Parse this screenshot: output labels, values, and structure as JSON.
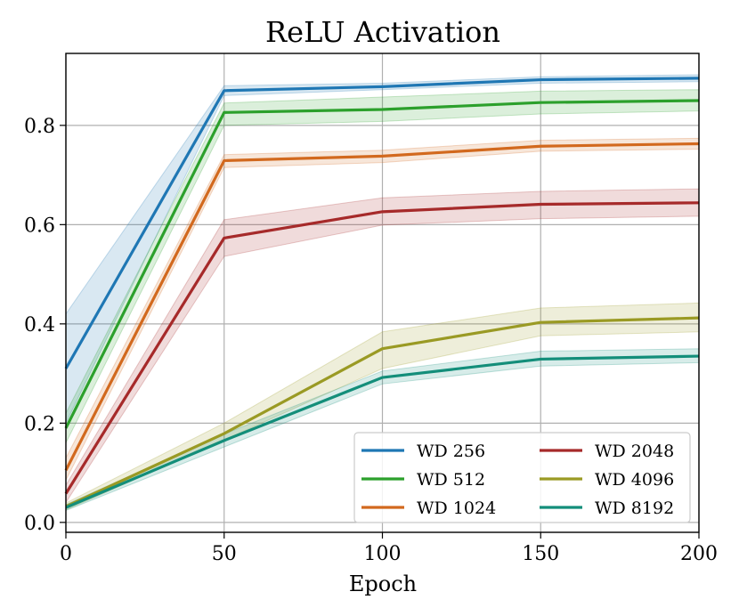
{
  "chart_data": {
    "type": "line",
    "title": "ReLU Activation",
    "xlabel": "Epoch",
    "ylabel": "",
    "xlim": [
      0,
      200
    ],
    "ylim": [
      -0.02,
      0.945
    ],
    "x_ticks": [
      0,
      50,
      100,
      150,
      200
    ],
    "y_ticks": [
      0.0,
      0.2,
      0.4,
      0.6,
      0.8
    ],
    "x_tick_labels": [
      "0",
      "50",
      "100",
      "150",
      "200"
    ],
    "y_tick_labels": [
      "0.0",
      "0.2",
      "0.4",
      "0.6",
      "0.8"
    ],
    "grid": true,
    "legend_position": "lower-right",
    "legend_columns": 2,
    "x": [
      0,
      50,
      100,
      150,
      200
    ],
    "series": [
      {
        "name": "WD 256",
        "color": "#1f77b4",
        "values": [
          0.31,
          0.87,
          0.878,
          0.892,
          0.895
        ],
        "lower": [
          0.2,
          0.86,
          0.872,
          0.885,
          0.888
        ],
        "upper": [
          0.42,
          0.88,
          0.885,
          0.898,
          0.902
        ]
      },
      {
        "name": "WD 512",
        "color": "#2ca02c",
        "values": [
          0.19,
          0.826,
          0.832,
          0.846,
          0.85
        ],
        "lower": [
          0.16,
          0.8,
          0.808,
          0.823,
          0.829
        ],
        "upper": [
          0.22,
          0.845,
          0.857,
          0.869,
          0.872
        ]
      },
      {
        "name": "WD 1024",
        "color": "#d2691e",
        "values": [
          0.105,
          0.729,
          0.738,
          0.758,
          0.763
        ],
        "lower": [
          0.085,
          0.715,
          0.725,
          0.748,
          0.752
        ],
        "upper": [
          0.13,
          0.741,
          0.75,
          0.77,
          0.774
        ]
      },
      {
        "name": "WD 2048",
        "color": "#a62a2a",
        "values": [
          0.058,
          0.573,
          0.626,
          0.641,
          0.644
        ],
        "lower": [
          0.04,
          0.536,
          0.599,
          0.612,
          0.617
        ],
        "upper": [
          0.075,
          0.61,
          0.654,
          0.667,
          0.672
        ]
      },
      {
        "name": "WD 4096",
        "color": "#9a9a24",
        "values": [
          0.032,
          0.179,
          0.35,
          0.403,
          0.412
        ],
        "lower": [
          0.025,
          0.166,
          0.31,
          0.376,
          0.384
        ],
        "upper": [
          0.039,
          0.2,
          0.384,
          0.432,
          0.442
        ]
      },
      {
        "name": "WD 8192",
        "color": "#138e7a",
        "values": [
          0.03,
          0.165,
          0.292,
          0.329,
          0.335
        ],
        "lower": [
          0.024,
          0.152,
          0.279,
          0.315,
          0.322
        ],
        "upper": [
          0.036,
          0.178,
          0.305,
          0.345,
          0.35
        ]
      }
    ]
  }
}
